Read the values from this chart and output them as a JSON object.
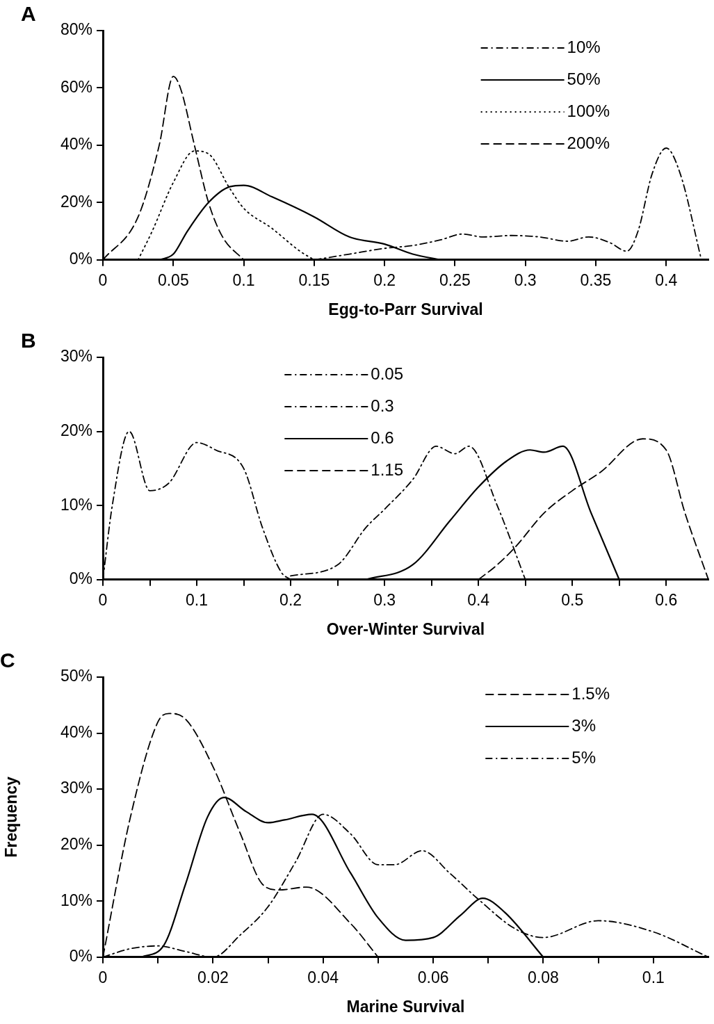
{
  "chart_data": [
    {
      "type": "line",
      "title": "A",
      "xlabel": "Egg-to-Parr Survival",
      "xlim": [
        0,
        0.43
      ],
      "xticks": [
        0,
        0.05,
        0.1,
        0.15,
        0.2,
        0.25,
        0.3,
        0.35,
        0.4
      ],
      "ylim": [
        0,
        80
      ],
      "yticks": [
        {
          "value": 0,
          "label": "0%"
        },
        {
          "value": 20,
          "label": "20%"
        },
        {
          "value": 40,
          "label": "40%"
        },
        {
          "value": 60,
          "label": "60%"
        },
        {
          "value": 80,
          "label": "80%"
        }
      ],
      "grid": false,
      "legend": "top right",
      "marker": "none",
      "series": [
        {
          "name": "10%",
          "color": "#000000",
          "line_style": "dashdot",
          "x": [
            0.15,
            0.175,
            0.2,
            0.22,
            0.24,
            0.255,
            0.27,
            0.29,
            0.31,
            0.33,
            0.345,
            0.36,
            0.372,
            0.38,
            0.39,
            0.4,
            0.41,
            0.425
          ],
          "values": [
            0,
            2,
            4,
            5,
            7,
            9,
            8,
            8.5,
            8,
            6.5,
            8,
            6,
            3,
            10,
            30,
            39,
            30,
            0
          ]
        },
        {
          "name": "50%",
          "color": "#000000",
          "line_style": "solid",
          "x": [
            0.04,
            0.05,
            0.06,
            0.075,
            0.09,
            0.1,
            0.12,
            0.15,
            0.175,
            0.2,
            0.22,
            0.24
          ],
          "values": [
            0,
            2,
            10,
            20,
            25.5,
            26,
            22,
            15,
            8,
            5.5,
            2,
            0
          ]
        },
        {
          "name": "100%",
          "color": "#000000",
          "line_style": "dotted",
          "x": [
            0.025,
            0.035,
            0.05,
            0.065,
            0.075,
            0.09,
            0.1,
            0.12,
            0.14,
            0.15
          ],
          "values": [
            0,
            10,
            27,
            38,
            37,
            25,
            18,
            11,
            3,
            0
          ]
        },
        {
          "name": "200%",
          "color": "#000000",
          "line_style": "dashed",
          "x": [
            0,
            0.025,
            0.04,
            0.05,
            0.055,
            0.065,
            0.075,
            0.085,
            0.1
          ],
          "values": [
            0,
            15,
            40,
            64,
            60,
            40,
            20,
            8,
            0
          ]
        }
      ]
    },
    {
      "type": "line",
      "title": "B",
      "xlabel": "Over-Winter Survival",
      "xlim": [
        0,
        0.645
      ],
      "xticks": [
        0,
        {
          "value": 0.05,
          "label": null
        },
        0.1,
        {
          "value": 0.15,
          "label": null
        },
        0.2,
        {
          "value": 0.25,
          "label": null
        },
        0.3,
        {
          "value": 0.35,
          "label": null
        },
        0.4,
        {
          "value": 0.45,
          "label": null
        },
        0.5,
        {
          "value": 0.55,
          "label": null
        },
        0.6
      ],
      "ylim": [
        0,
        30
      ],
      "yticks": [
        {
          "value": 0,
          "label": "0%"
        },
        {
          "value": 10,
          "label": "10%"
        },
        {
          "value": 20,
          "label": "20%"
        },
        {
          "value": 30,
          "label": "30%"
        }
      ],
      "grid": false,
      "legend": "top",
      "marker": "none",
      "series": [
        {
          "name": "0.05",
          "color": "#000000",
          "line_style": "dashdot",
          "x": [
            0,
            0.01,
            0.028,
            0.05,
            0.07,
            0.1,
            0.12,
            0.15,
            0.17,
            0.19,
            0.2
          ],
          "values": [
            0,
            10,
            20,
            12,
            13,
            18.5,
            17.5,
            15,
            7,
            1,
            0
          ]
        },
        {
          "name": "0.3",
          "color": "#000000",
          "line_style": "dashdot",
          "x": [
            0.2,
            0.25,
            0.28,
            0.3,
            0.33,
            0.355,
            0.375,
            0.39,
            0.42,
            0.45
          ],
          "values": [
            0.5,
            2,
            7,
            9.5,
            13.5,
            18,
            17,
            18,
            10,
            0
          ]
        },
        {
          "name": "0.6",
          "color": "#000000",
          "line_style": "solid",
          "x": [
            0.28,
            0.33,
            0.37,
            0.4,
            0.43,
            0.455,
            0.47,
            0.49,
            0.52,
            0.55
          ],
          "values": [
            0,
            2,
            8,
            12.5,
            16,
            17.5,
            17.2,
            18,
            9,
            0
          ]
        },
        {
          "name": "1.15",
          "color": "#000000",
          "line_style": "dashed",
          "x": [
            0.4,
            0.42,
            0.44,
            0.47,
            0.5,
            0.53,
            0.575,
            0.6,
            0.62,
            0.645
          ],
          "values": [
            0,
            2,
            4.5,
            9,
            12,
            14.5,
            19,
            17.5,
            9,
            0
          ]
        }
      ]
    },
    {
      "type": "line",
      "title": "C",
      "xlabel": "Marine Survival",
      "ylabel": "Frequency",
      "xlim": [
        0,
        0.11
      ],
      "xticks": [
        0,
        {
          "value": 0.01,
          "label": null
        },
        0.02,
        {
          "value": 0.03,
          "label": null
        },
        0.04,
        {
          "value": 0.05,
          "label": null
        },
        0.06,
        {
          "value": 0.07,
          "label": null
        },
        0.08,
        {
          "value": 0.09,
          "label": null
        },
        0.1
      ],
      "ylim": [
        0,
        50
      ],
      "yticks": [
        {
          "value": 0,
          "label": "0%"
        },
        {
          "value": 10,
          "label": "10%"
        },
        {
          "value": 20,
          "label": "20%"
        },
        {
          "value": 30,
          "label": "30%"
        },
        {
          "value": 40,
          "label": "40%"
        },
        {
          "value": 50,
          "label": "50%"
        }
      ],
      "grid": false,
      "legend": "top right",
      "marker": "none",
      "series": [
        {
          "name": "1.5%",
          "color": "#000000",
          "line_style": "dashed",
          "x": [
            0,
            0.005,
            0.01,
            0.012,
            0.015,
            0.02,
            0.025,
            0.029,
            0.032,
            0.037,
            0.045,
            0.05
          ],
          "values": [
            0,
            25,
            42,
            43.5,
            42.5,
            34,
            22,
            13,
            12,
            12.5,
            6,
            0
          ]
        },
        {
          "name": "3%",
          "color": "#000000",
          "line_style": "solid",
          "x": [
            0.007,
            0.011,
            0.015,
            0.019,
            0.022,
            0.026,
            0.03,
            0.033,
            0.038,
            0.045,
            0.05,
            0.055,
            0.06,
            0.065,
            0.069,
            0.073,
            0.08
          ],
          "values": [
            0,
            2,
            13,
            25,
            28.5,
            26,
            24,
            24.5,
            25.5,
            15,
            7,
            3,
            3.5,
            7.5,
            10.5,
            8,
            0
          ]
        },
        {
          "name": "5%",
          "color": "#000000",
          "line_style": "dashdot",
          "x": [
            0,
            0.005,
            0.01,
            0.015,
            0.02,
            0.025,
            0.03,
            0.035,
            0.04,
            0.045,
            0.05,
            0.053,
            0.058,
            0.063,
            0.068,
            0.075,
            0.08,
            0.09,
            0.1,
            0.11
          ],
          "values": [
            0,
            1.5,
            2,
            1,
            0,
            4,
            9,
            17,
            25.5,
            22,
            16.5,
            16.5,
            19,
            15,
            10.5,
            5,
            3.5,
            6.5,
            4.5,
            0
          ]
        }
      ]
    }
  ]
}
